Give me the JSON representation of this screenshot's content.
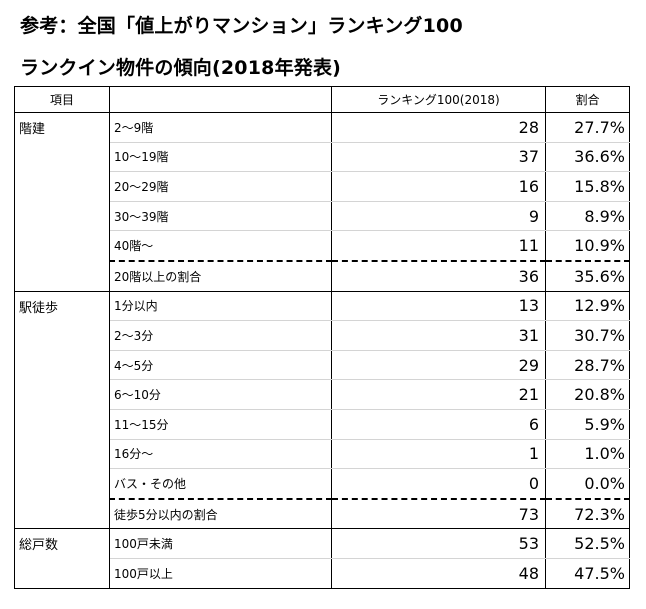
{
  "title_line1": "参考：全国「値上がりマンション」ランキング100",
  "title_line2": "ランクイン物件の傾向(2018年発表)",
  "table": {
    "headers": [
      "項目",
      "",
      "ランキング100(2018)",
      "割合"
    ],
    "groups": [
      {
        "category": "階建",
        "rows": [
          {
            "label": "2～9階",
            "count": "28",
            "pct": "27.7%"
          },
          {
            "label": "10～19階",
            "count": "37",
            "pct": "36.6%"
          },
          {
            "label": "20～29階",
            "count": "16",
            "pct": "15.8%"
          },
          {
            "label": "30～39階",
            "count": "9",
            "pct": "8.9%"
          },
          {
            "label": "40階～",
            "count": "11",
            "pct": "10.9%"
          },
          {
            "label": "20階以上の割合",
            "count": "36",
            "pct": "35.6%"
          }
        ]
      },
      {
        "category": "駅徒歩",
        "rows": [
          {
            "label": "1分以内",
            "count": "13",
            "pct": "12.9%"
          },
          {
            "label": "2～3分",
            "count": "31",
            "pct": "30.7%"
          },
          {
            "label": "4～5分",
            "count": "29",
            "pct": "28.7%"
          },
          {
            "label": "6～10分",
            "count": "21",
            "pct": "20.8%"
          },
          {
            "label": "11～15分",
            "count": "6",
            "pct": "5.9%"
          },
          {
            "label": "16分～",
            "count": "1",
            "pct": "1.0%"
          },
          {
            "label": "バス・その他",
            "count": "0",
            "pct": "0.0%"
          },
          {
            "label": "徒歩5分以内の割合",
            "count": "73",
            "pct": "72.3%"
          }
        ]
      },
      {
        "category": "総戸数",
        "rows": [
          {
            "label": "100戸未満",
            "count": "53",
            "pct": "52.5%"
          },
          {
            "label": "100戸以上",
            "count": "48",
            "pct": "47.5%"
          }
        ]
      }
    ]
  }
}
